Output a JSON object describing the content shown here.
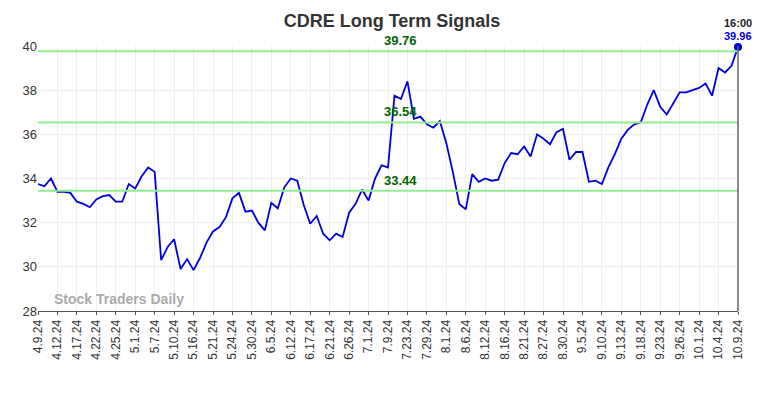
{
  "chart_data": {
    "type": "line",
    "title": "CDRE Long Term Signals",
    "watermark": "Stock Traders Daily",
    "last_time_label": "16:00",
    "color": "#0000dd",
    "levels": [
      39.76,
      36.54,
      33.44
    ],
    "level_color": "#90ee90",
    "level_label_color": "#006400",
    "grid": true,
    "ylim": [
      28,
      40
    ],
    "yticks": [
      28,
      30,
      32,
      34,
      36,
      38,
      40
    ],
    "categories": [
      "4.9.24",
      null,
      null,
      "4.12.24",
      null,
      null,
      "4.17.24",
      null,
      null,
      "4.22.24",
      null,
      null,
      "4.25.24",
      null,
      null,
      "5.1.24",
      null,
      null,
      "5.7.24",
      null,
      null,
      "5.10.24",
      null,
      null,
      "5.16.24",
      null,
      null,
      "5.21.24",
      null,
      null,
      "5.24.24",
      null,
      null,
      "5.30.24",
      null,
      null,
      "6.5.24",
      null,
      null,
      "6.12.24",
      null,
      null,
      "6.17.24",
      null,
      null,
      "6.21.24",
      null,
      null,
      "6.26.24",
      null,
      null,
      "7.1.24",
      null,
      null,
      "7.9.24",
      null,
      null,
      "7.23.24",
      null,
      null,
      "7.29.24",
      null,
      null,
      "8.1.24",
      null,
      null,
      "8.6.24",
      null,
      null,
      "8.12.24",
      null,
      null,
      "8.16.24",
      null,
      null,
      "8.21.24",
      null,
      null,
      "8.27.24",
      null,
      null,
      "8.30.24",
      null,
      null,
      "9.5.24",
      null,
      null,
      "9.10.24",
      null,
      null,
      "9.13.24",
      null,
      null,
      "9.18.24",
      null,
      null,
      "9.23.24",
      null,
      null,
      "9.26.24",
      null,
      null,
      "10.1.24",
      null,
      null,
      "10.4.24",
      null,
      null,
      "10.9.24"
    ],
    "values": [
      33.75,
      33.65,
      34.0,
      33.4,
      33.4,
      33.35,
      32.95,
      32.85,
      32.7,
      33.05,
      33.2,
      33.25,
      32.95,
      32.95,
      33.75,
      33.55,
      34.1,
      34.5,
      34.3,
      30.3,
      30.9,
      31.25,
      29.9,
      30.35,
      29.85,
      30.4,
      31.1,
      31.6,
      31.8,
      32.25,
      33.1,
      33.35,
      32.5,
      32.55,
      32.0,
      31.65,
      32.9,
      32.65,
      33.6,
      34.0,
      33.9,
      32.8,
      31.95,
      32.3,
      31.5,
      31.2,
      31.5,
      31.35,
      32.45,
      32.85,
      33.5,
      33.0,
      34.0,
      34.6,
      34.5,
      37.75,
      37.6,
      38.4,
      36.7,
      36.8,
      36.45,
      36.3,
      36.6,
      35.6,
      34.3,
      32.85,
      32.6,
      34.2,
      33.85,
      34.0,
      33.9,
      33.95,
      34.7,
      35.15,
      35.1,
      35.45,
      35.0,
      36.0,
      35.8,
      35.55,
      36.1,
      36.25,
      34.85,
      35.2,
      35.2,
      33.85,
      33.9,
      33.75,
      34.5,
      35.1,
      35.8,
      36.2,
      36.45,
      36.55,
      37.35,
      38.0,
      37.25,
      36.9,
      37.4,
      37.9,
      37.9,
      38.0,
      38.1,
      38.3,
      37.75,
      39.0,
      38.8,
      39.1,
      39.96
    ]
  }
}
